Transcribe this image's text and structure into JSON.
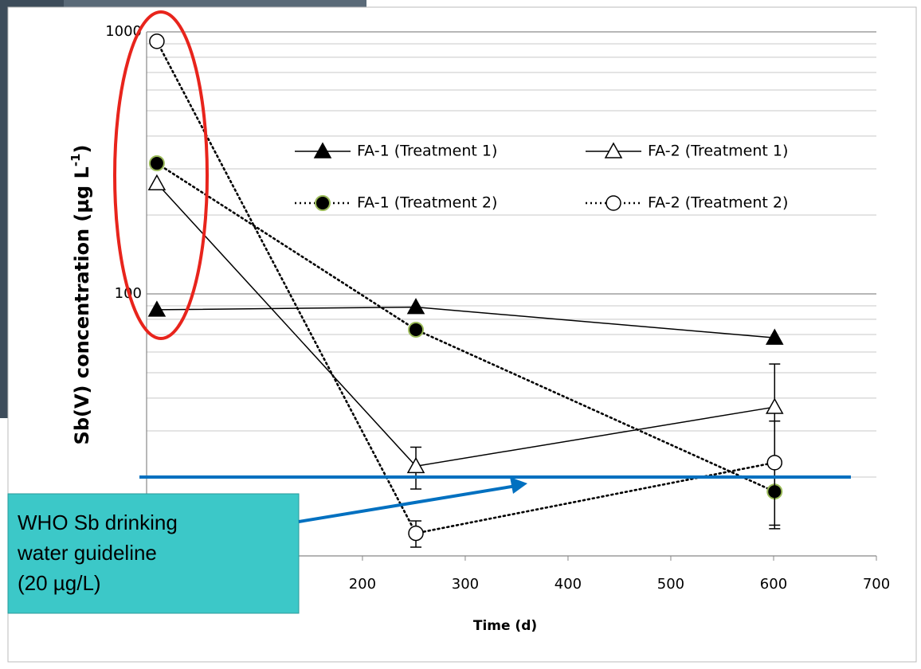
{
  "chart_data": {
    "type": "line",
    "x_label": "Time (d)",
    "y_label": "Sb(V) concentration  (µg L",
    "y_label_sup": "-1",
    "y_label_end": ")",
    "xlim": [
      -10,
      700
    ],
    "xticks": [
      200,
      300,
      400,
      500,
      600,
      700
    ],
    "ylim": [
      10,
      1000
    ],
    "yticks": [
      100,
      1000
    ],
    "log_y": true,
    "yminor": [
      20,
      30,
      40,
      50,
      60,
      70,
      80,
      90,
      200,
      300,
      400,
      500,
      600,
      700,
      800,
      900
    ],
    "grid": true,
    "series": [
      {
        "name": "FA-1 (Treatment 1)",
        "color": "#000000",
        "line_style": "solid",
        "marker": "filled-triangle",
        "x": [
          0,
          252,
          601
        ],
        "values": [
          87,
          89,
          68
        ],
        "errors": [
          null,
          null,
          null
        ]
      },
      {
        "name": "FA-2 (Treatment 1)",
        "color": "#000000",
        "line_style": "solid",
        "marker": "open-triangle",
        "x": [
          0,
          252,
          601
        ],
        "values": [
          264,
          22,
          37
        ],
        "errors": [
          null,
          4,
          17
        ]
      },
      {
        "name": "FA-1 (Treatment 2)",
        "color": "#000000",
        "line_style": "dotted",
        "marker": "filled-circle",
        "marker_edge": "#9bbb59",
        "x": [
          0,
          252,
          601
        ],
        "values": [
          315,
          73,
          17.6
        ],
        "errors": [
          null,
          null,
          4.5
        ]
      },
      {
        "name": "FA-2 (Treatment 2)",
        "color": "#000000",
        "line_style": "dotted",
        "marker": "open-circle",
        "x": [
          0,
          252,
          601
        ],
        "values": [
          920,
          12.2,
          22.7
        ],
        "errors": [
          null,
          1.4,
          10
        ]
      }
    ],
    "guideline": {
      "value": 20,
      "color": "#0070c0",
      "callout": [
        "WHO Sb drinking",
        "water guideline",
        "(20 µg/L)"
      ],
      "callout_color": "#3cc8c8"
    },
    "highlight_color": "#e8241c"
  }
}
